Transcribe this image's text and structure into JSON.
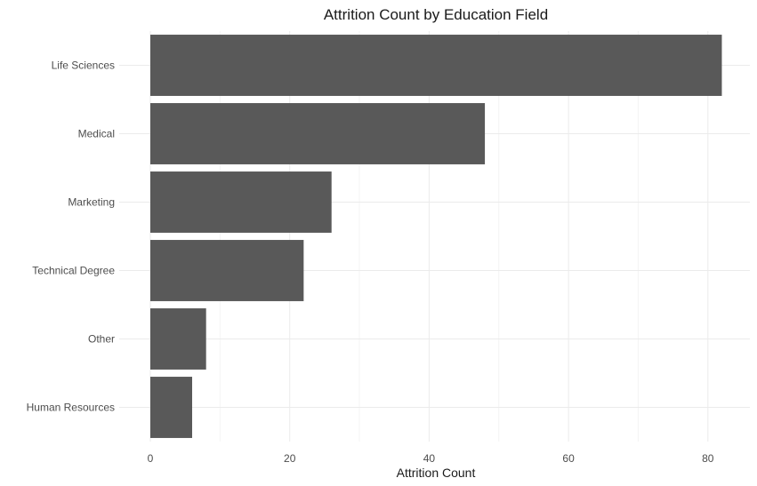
{
  "chart_data": {
    "type": "bar",
    "orientation": "horizontal",
    "title": "Attrition Count by Education Field",
    "xlabel": "Attrition Count",
    "ylabel": "",
    "categories": [
      "Life Sciences",
      "Medical",
      "Marketing",
      "Technical Degree",
      "Other",
      "Human Resources"
    ],
    "values": [
      82,
      48,
      26,
      22,
      8,
      6
    ],
    "xlim": [
      0,
      86
    ],
    "x_ticks": [
      0,
      20,
      40,
      60,
      80
    ],
    "x_tick_labels": [
      "0",
      "20",
      "40",
      "60",
      "80"
    ],
    "grid": true,
    "legend": "none",
    "bar_color": "#595959"
  }
}
